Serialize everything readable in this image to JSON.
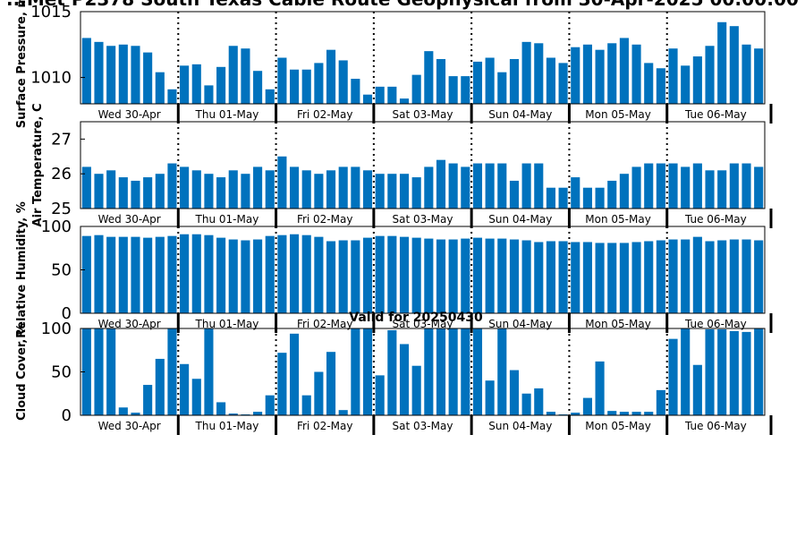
{
  "title": "...Met P2378 South Texas Cable Route Geophysical from 30-Apr-2025 00:00:00",
  "valid_label": "Valid for 20250430",
  "colors": {
    "bar": "#0072BD",
    "axis": "#000000"
  },
  "chart_data": [
    {
      "type": "bar",
      "ylabel": "Surface Pressure, mb",
      "ylim": [
        1008,
        1015
      ],
      "yticks": [
        1010,
        1015
      ],
      "day_labels": [
        "Wed 30-Apr",
        "Thu 01-May",
        "Fri 02-May",
        "Sat 03-May",
        "Sun 04-May",
        "Mon 05-May",
        "Tue 06-May"
      ],
      "values": [
        1013.0,
        1012.7,
        1012.4,
        1012.5,
        1012.4,
        1011.9,
        1010.4,
        1009.1,
        1010.9,
        1011.0,
        1009.4,
        1010.8,
        1012.4,
        1012.2,
        1010.5,
        1009.1,
        1011.5,
        1010.6,
        1010.6,
        1011.1,
        1012.1,
        1011.3,
        1009.9,
        1008.7,
        1009.3,
        1009.3,
        1008.4,
        1010.2,
        1012.0,
        1011.4,
        1010.1,
        1010.1,
        1011.2,
        1011.5,
        1010.4,
        1011.4,
        1012.7,
        1012.6,
        1011.5,
        1011.1,
        1012.3,
        1012.5,
        1012.1,
        1012.6,
        1013.0,
        1012.5,
        1011.1,
        1010.7,
        1012.2,
        1010.9,
        1011.6,
        1012.4,
        1014.2,
        1013.9,
        1012.5,
        1012.2
      ]
    },
    {
      "type": "bar",
      "ylabel": "Air Temperature, C",
      "ylim": [
        25,
        27.5
      ],
      "yticks": [
        25,
        26,
        27
      ],
      "day_labels": [
        "Wed 30-Apr",
        "Thu 01-May",
        "Fri 02-May",
        "Sat 03-May",
        "Sun 04-May",
        "Mon 05-May",
        "Tue 06-May"
      ],
      "values": [
        26.2,
        26.0,
        26.1,
        25.9,
        25.8,
        25.9,
        26.0,
        26.3,
        26.2,
        26.1,
        26.0,
        25.9,
        26.1,
        26.0,
        26.2,
        26.1,
        26.5,
        26.2,
        26.1,
        26.0,
        26.1,
        26.2,
        26.2,
        26.1,
        26.0,
        26.0,
        26.0,
        25.9,
        26.2,
        26.4,
        26.3,
        26.2,
        26.3,
        26.3,
        26.3,
        25.8,
        26.3,
        26.3,
        25.6,
        25.6,
        25.9,
        25.6,
        25.6,
        25.8,
        26.0,
        26.2,
        26.3,
        26.3,
        26.3,
        26.2,
        26.3,
        26.1,
        26.1,
        26.3,
        26.3,
        26.2
      ]
    },
    {
      "type": "bar",
      "ylabel": "Relative Humidity, %",
      "ylim": [
        0,
        100
      ],
      "yticks": [
        0,
        50,
        100
      ],
      "day_labels": [
        "Wed 30-Apr",
        "Thu 01-May",
        "Fri 02-May",
        "Sat 03-May",
        "Sun 04-May",
        "Mon 05-May",
        "Tue 06-May"
      ],
      "values": [
        89,
        90,
        88,
        88,
        88,
        87,
        88,
        89,
        91,
        91,
        90,
        87,
        85,
        84,
        85,
        89,
        90,
        91,
        90,
        88,
        83,
        84,
        84,
        87,
        89,
        89,
        88,
        87,
        86,
        85,
        85,
        86,
        87,
        86,
        86,
        85,
        84,
        82,
        83,
        83,
        82,
        82,
        81,
        81,
        81,
        82,
        83,
        84,
        85,
        85,
        88,
        83,
        84,
        85,
        85,
        84
      ]
    },
    {
      "type": "bar",
      "ylabel": "Cloud Cover, %",
      "ylim": [
        0,
        100
      ],
      "yticks": [
        0,
        50,
        100
      ],
      "day_labels": [
        "Wed 30-Apr",
        "Thu 01-May",
        "Fri 02-May",
        "Sat 03-May",
        "Sun 04-May",
        "Mon 05-May",
        "Tue 06-May"
      ],
      "values": [
        100,
        100,
        100,
        9,
        3,
        35,
        65,
        100,
        59,
        42,
        100,
        15,
        2,
        1,
        4,
        23,
        72,
        94,
        23,
        50,
        73,
        6,
        100,
        100,
        46,
        98,
        82,
        57,
        100,
        100,
        100,
        100,
        100,
        40,
        100,
        52,
        25,
        31,
        4,
        1,
        3,
        20,
        62,
        5,
        4,
        4,
        4,
        29,
        88,
        100,
        58,
        99,
        99,
        97,
        96,
        100
      ]
    }
  ]
}
